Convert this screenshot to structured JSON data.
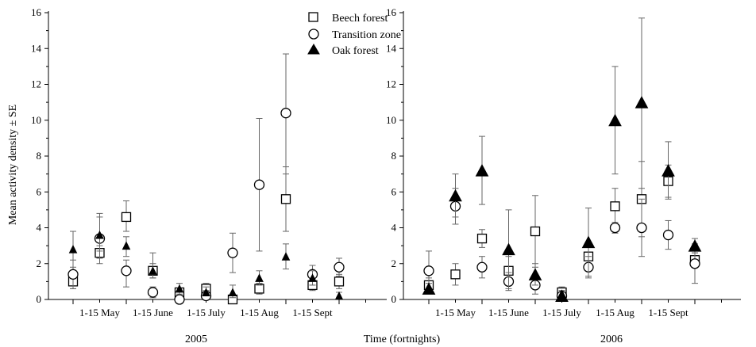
{
  "chart_data": {
    "type": "scatter",
    "ylabel": "Mean activity density ± SE",
    "xlabel": "Time (fortnights)",
    "ylim": [
      0,
      16
    ],
    "yticks": [
      0,
      2,
      4,
      6,
      8,
      10,
      12,
      14,
      16
    ],
    "grid": false,
    "legend": {
      "placement": "top-center",
      "entries": [
        {
          "name": "Beech forest",
          "marker": "square-open"
        },
        {
          "name": "Transition zone",
          "marker": "circle-open"
        },
        {
          "name": "Oak forest",
          "marker": "triangle-filled"
        }
      ]
    },
    "panels": [
      {
        "label": "2005",
        "x_tick_labels": [
          "1-15 May",
          "1-15 June",
          "1-15 July",
          "1-15 Aug",
          "1-15 Sept"
        ],
        "series": [
          {
            "name": "Beech forest",
            "marker": "square-open",
            "points": [
              {
                "x": 1,
                "y": 1.0,
                "lo": 0.6,
                "hi": 1.6
              },
              {
                "x": 2,
                "y": 2.6,
                "lo": 2.0,
                "hi": 3.0
              },
              {
                "x": 3,
                "y": 4.6,
                "lo": 3.8,
                "hi": 5.5
              },
              {
                "x": 4,
                "y": 1.6,
                "lo": 1.2,
                "hi": 2.0
              },
              {
                "x": 5,
                "y": 0.4,
                "lo": 0.2,
                "hi": 0.6
              },
              {
                "x": 6,
                "y": 0.6,
                "lo": 0.4,
                "hi": 0.9
              },
              {
                "x": 7,
                "y": 0.0,
                "lo": 0.0,
                "hi": 0.1
              },
              {
                "x": 8,
                "y": 0.6,
                "lo": 0.3,
                "hi": 0.9
              },
              {
                "x": 9,
                "y": 5.6,
                "lo": 3.8,
                "hi": 7.4
              },
              {
                "x": 10,
                "y": 0.8,
                "lo": 0.5,
                "hi": 1.1
              },
              {
                "x": 11,
                "y": 1.0,
                "lo": 0.6,
                "hi": 1.4
              }
            ]
          },
          {
            "name": "Transition zone",
            "marker": "circle-open",
            "points": [
              {
                "x": 1,
                "y": 1.4,
                "lo": 0.6,
                "hi": 2.2
              },
              {
                "x": 2,
                "y": 3.4,
                "lo": 2.3,
                "hi": 4.6
              },
              {
                "x": 3,
                "y": 1.6,
                "lo": 0.7,
                "hi": 2.2
              },
              {
                "x": 4,
                "y": 0.4,
                "lo": 0.1,
                "hi": 0.7
              },
              {
                "x": 5,
                "y": 0.0,
                "lo": 0.0,
                "hi": 0.2
              },
              {
                "x": 6,
                "y": 0.2,
                "lo": 0.0,
                "hi": 0.5
              },
              {
                "x": 7,
                "y": 2.6,
                "lo": 1.5,
                "hi": 3.7
              },
              {
                "x": 8,
                "y": 6.4,
                "lo": 2.7,
                "hi": 10.1
              },
              {
                "x": 9,
                "y": 10.4,
                "lo": 7.0,
                "hi": 13.7
              },
              {
                "x": 10,
                "y": 1.4,
                "lo": 0.8,
                "hi": 1.9
              },
              {
                "x": 11,
                "y": 1.8,
                "lo": 1.3,
                "hi": 2.3
              }
            ]
          },
          {
            "name": "Oak forest",
            "marker": "triangle-filled",
            "points": [
              {
                "x": 1,
                "y": 2.8,
                "lo": 1.8,
                "hi": 3.8
              },
              {
                "x": 2,
                "y": 3.6,
                "lo": 2.7,
                "hi": 4.8
              },
              {
                "x": 3,
                "y": 3.0,
                "lo": 2.4,
                "hi": 3.5
              },
              {
                "x": 4,
                "y": 1.6,
                "lo": 1.2,
                "hi": 2.6
              },
              {
                "x": 5,
                "y": 0.6,
                "lo": 0.3,
                "hi": 0.9
              },
              {
                "x": 6,
                "y": 0.4,
                "lo": 0.2,
                "hi": 0.7
              },
              {
                "x": 7,
                "y": 0.4,
                "lo": 0.1,
                "hi": 0.8
              },
              {
                "x": 8,
                "y": 1.2,
                "lo": 0.8,
                "hi": 1.6
              },
              {
                "x": 9,
                "y": 2.4,
                "lo": 1.7,
                "hi": 3.1
              },
              {
                "x": 10,
                "y": 1.2,
                "lo": 0.8,
                "hi": 1.6
              },
              {
                "x": 11,
                "y": 0.2,
                "lo": 0.0,
                "hi": 0.4
              }
            ]
          }
        ]
      },
      {
        "label": "2006",
        "x_tick_labels": [
          "1-15 May",
          "1-15 June",
          "1-15 July",
          "1-15 Aug",
          "1-15 Sept"
        ],
        "series": [
          {
            "name": "Beech forest",
            "marker": "square-open",
            "points": [
              {
                "x": 1,
                "y": 0.8,
                "lo": 0.4,
                "hi": 1.2
              },
              {
                "x": 2,
                "y": 1.4,
                "lo": 0.8,
                "hi": 2.0
              },
              {
                "x": 3,
                "y": 3.4,
                "lo": 2.9,
                "hi": 3.9
              },
              {
                "x": 4,
                "y": 1.6,
                "lo": 0.8,
                "hi": 2.4
              },
              {
                "x": 5,
                "y": 3.8,
                "lo": 1.8,
                "hi": 5.8
              },
              {
                "x": 6,
                "y": 0.4,
                "lo": 0.1,
                "hi": 0.7
              },
              {
                "x": 7,
                "y": 2.4,
                "lo": 1.8,
                "hi": 3.0
              },
              {
                "x": 8,
                "y": 5.2,
                "lo": 4.2,
                "hi": 6.2
              },
              {
                "x": 9,
                "y": 5.6,
                "lo": 3.5,
                "hi": 7.7
              },
              {
                "x": 10,
                "y": 6.6,
                "lo": 5.7,
                "hi": 7.5
              },
              {
                "x": 11,
                "y": 2.2,
                "lo": 1.8,
                "hi": 2.6
              }
            ]
          },
          {
            "name": "Transition zone",
            "marker": "circle-open",
            "points": [
              {
                "x": 1,
                "y": 1.6,
                "lo": 0.6,
                "hi": 2.7
              },
              {
                "x": 2,
                "y": 5.2,
                "lo": 4.2,
                "hi": 6.2
              },
              {
                "x": 3,
                "y": 1.8,
                "lo": 1.2,
                "hi": 2.4
              },
              {
                "x": 4,
                "y": 1.0,
                "lo": 0.5,
                "hi": 1.5
              },
              {
                "x": 5,
                "y": 0.8,
                "lo": 0.3,
                "hi": 1.3
              },
              {
                "x": 6,
                "y": 0.2,
                "lo": 0.0,
                "hi": 0.5
              },
              {
                "x": 7,
                "y": 1.8,
                "lo": 1.2,
                "hi": 2.4
              },
              {
                "x": 8,
                "y": 4.0,
                "lo": 3.7,
                "hi": 4.3
              },
              {
                "x": 9,
                "y": 4.0,
                "lo": 2.4,
                "hi": 5.6
              },
              {
                "x": 10,
                "y": 3.6,
                "lo": 2.8,
                "hi": 4.4
              },
              {
                "x": 11,
                "y": 2.0,
                "lo": 0.9,
                "hi": 3.1
              }
            ]
          },
          {
            "name": "Oak forest",
            "marker": "triangle-filled",
            "points": [
              {
                "x": 1,
                "y": 0.6,
                "lo": 0.4,
                "hi": 0.9
              },
              {
                "x": 2,
                "y": 5.8,
                "lo": 4.6,
                "hi": 7.0
              },
              {
                "x": 3,
                "y": 7.2,
                "lo": 5.3,
                "hi": 9.1
              },
              {
                "x": 4,
                "y": 2.8,
                "lo": 0.6,
                "hi": 5.0
              },
              {
                "x": 5,
                "y": 1.4,
                "lo": 0.8,
                "hi": 2.0
              },
              {
                "x": 6,
                "y": 0.2,
                "lo": 0.0,
                "hi": 0.4
              },
              {
                "x": 7,
                "y": 3.2,
                "lo": 1.3,
                "hi": 5.1
              },
              {
                "x": 8,
                "y": 10.0,
                "lo": 7.0,
                "hi": 13.0
              },
              {
                "x": 9,
                "y": 11.0,
                "lo": 6.2,
                "hi": 15.7
              },
              {
                "x": 10,
                "y": 7.2,
                "lo": 5.6,
                "hi": 8.8
              },
              {
                "x": 11,
                "y": 3.0,
                "lo": 2.6,
                "hi": 3.4
              }
            ]
          }
        ]
      }
    ]
  }
}
